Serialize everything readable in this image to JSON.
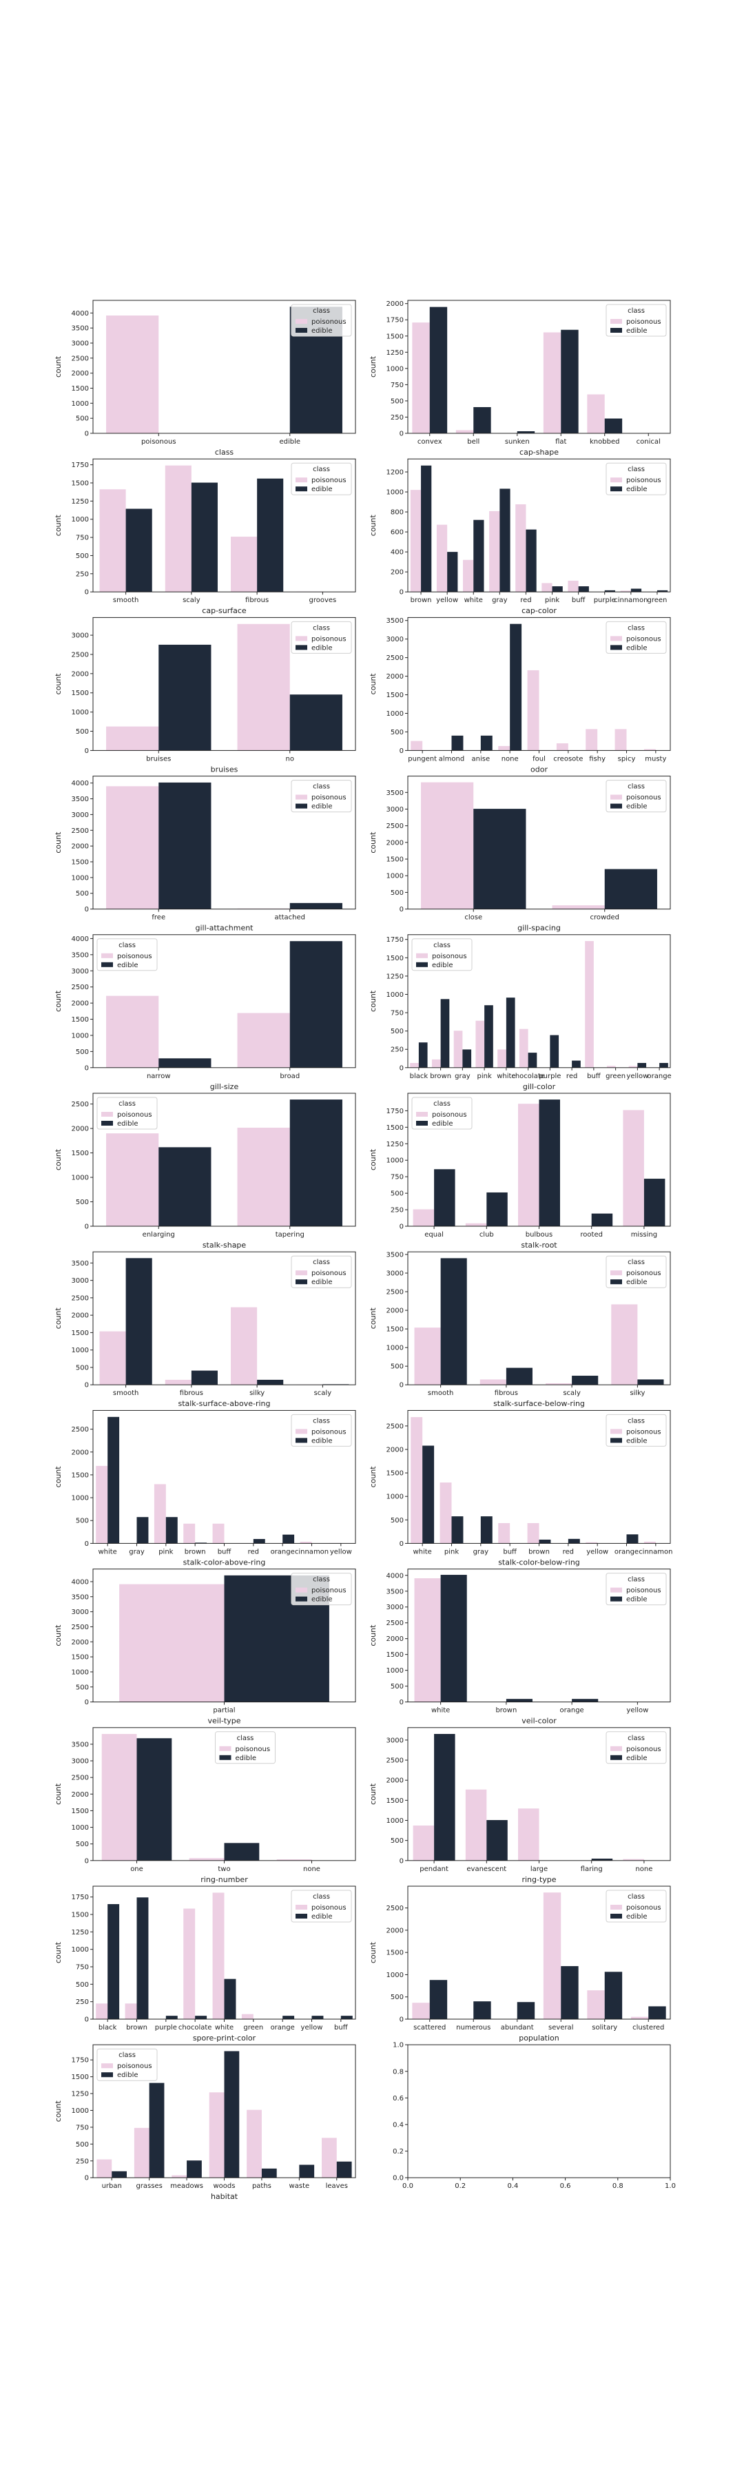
{
  "colors": {
    "poisonous": "#edcfe3",
    "edible": "#1f2a3a"
  },
  "legend": {
    "title": "class",
    "entries": [
      "poisonous",
      "edible"
    ]
  },
  "chart_data": [
    {
      "type": "bar",
      "xlabel": "class",
      "ylabel": "count",
      "categories": [
        "poisonous",
        "edible"
      ],
      "series": [
        {
          "name": "poisonous",
          "values": [
            3916,
            0
          ]
        },
        {
          "name": "edible",
          "values": [
            0,
            4208
          ]
        }
      ],
      "ylim": [
        0,
        4420
      ],
      "yticks": [
        0,
        500,
        1000,
        1500,
        2000,
        2500,
        3000,
        3500,
        4000
      ],
      "legend_placement": "top-right"
    },
    {
      "type": "bar",
      "xlabel": "cap-shape",
      "ylabel": "count",
      "categories": [
        "convex",
        "bell",
        "sunken",
        "flat",
        "knobbed",
        "conical"
      ],
      "series": [
        {
          "name": "poisonous",
          "values": [
            1708,
            48,
            0,
            1556,
            600,
            4
          ]
        },
        {
          "name": "edible",
          "values": [
            1948,
            404,
            32,
            1596,
            228,
            0
          ]
        }
      ],
      "ylim": [
        0,
        2050
      ],
      "yticks": [
        0,
        250,
        500,
        750,
        1000,
        1250,
        1500,
        1750,
        2000
      ],
      "legend_placement": "top-right"
    },
    {
      "type": "bar",
      "xlabel": "cap-surface",
      "ylabel": "count",
      "categories": [
        "smooth",
        "scaly",
        "fibrous",
        "grooves"
      ],
      "series": [
        {
          "name": "poisonous",
          "values": [
            1412,
            1740,
            760,
            4
          ]
        },
        {
          "name": "edible",
          "values": [
            1144,
            1504,
            1560,
            0
          ]
        }
      ],
      "ylim": [
        0,
        1830
      ],
      "yticks": [
        0,
        250,
        500,
        750,
        1000,
        1250,
        1500,
        1750
      ],
      "legend_placement": "top-right"
    },
    {
      "type": "bar",
      "xlabel": "cap-color",
      "ylabel": "count",
      "categories": [
        "brown",
        "yellow",
        "white",
        "gray",
        "red",
        "pink",
        "buff",
        "purple",
        "cinnamon",
        "green"
      ],
      "series": [
        {
          "name": "poisonous",
          "values": [
            1020,
            672,
            320,
            808,
            876,
            88,
            112,
            0,
            12,
            0
          ]
        },
        {
          "name": "edible",
          "values": [
            1264,
            400,
            720,
            1032,
            624,
            56,
            56,
            16,
            32,
            16
          ]
        }
      ],
      "ylim": [
        0,
        1330
      ],
      "yticks": [
        0,
        200,
        400,
        600,
        800,
        1000,
        1200
      ],
      "legend_placement": "top-right"
    },
    {
      "type": "bar",
      "xlabel": "bruises",
      "ylabel": "count",
      "categories": [
        "bruises",
        "no"
      ],
      "series": [
        {
          "name": "poisonous",
          "values": [
            624,
            3292
          ]
        },
        {
          "name": "edible",
          "values": [
            2752,
            1456
          ]
        }
      ],
      "ylim": [
        0,
        3460
      ],
      "yticks": [
        0,
        500,
        1000,
        1500,
        2000,
        2500,
        3000
      ],
      "legend_placement": "top-right"
    },
    {
      "type": "bar",
      "xlabel": "odor",
      "ylabel": "count",
      "categories": [
        "pungent",
        "almond",
        "anise",
        "none",
        "foul",
        "creosote",
        "fishy",
        "spicy",
        "musty"
      ],
      "series": [
        {
          "name": "poisonous",
          "values": [
            256,
            0,
            0,
            120,
            2160,
            192,
            576,
            576,
            36
          ]
        },
        {
          "name": "edible",
          "values": [
            0,
            400,
            400,
            3408,
            0,
            0,
            0,
            0,
            0
          ]
        }
      ],
      "ylim": [
        0,
        3580
      ],
      "yticks": [
        0,
        500,
        1000,
        1500,
        2000,
        2500,
        3000,
        3500
      ],
      "legend_placement": "top-right"
    },
    {
      "type": "bar",
      "xlabel": "gill-attachment",
      "ylabel": "count",
      "categories": [
        "free",
        "attached"
      ],
      "series": [
        {
          "name": "poisonous",
          "values": [
            3898,
            18
          ]
        },
        {
          "name": "edible",
          "values": [
            4016,
            192
          ]
        }
      ],
      "ylim": [
        0,
        4220
      ],
      "yticks": [
        0,
        500,
        1000,
        1500,
        2000,
        2500,
        3000,
        3500,
        4000
      ],
      "legend_placement": "top-right"
    },
    {
      "type": "bar",
      "xlabel": "gill-spacing",
      "ylabel": "count",
      "categories": [
        "close",
        "crowded"
      ],
      "series": [
        {
          "name": "poisonous",
          "values": [
            3804,
            112
          ]
        },
        {
          "name": "edible",
          "values": [
            3008,
            1200
          ]
        }
      ],
      "ylim": [
        0,
        3990
      ],
      "yticks": [
        0,
        500,
        1000,
        1500,
        2000,
        2500,
        3000,
        3500
      ],
      "legend_placement": "top-right"
    },
    {
      "type": "bar",
      "xlabel": "gill-size",
      "ylabel": "count",
      "categories": [
        "narrow",
        "broad"
      ],
      "series": [
        {
          "name": "poisonous",
          "values": [
            2224,
            1692
          ]
        },
        {
          "name": "edible",
          "values": [
            288,
            3920
          ]
        }
      ],
      "ylim": [
        0,
        4120
      ],
      "yticks": [
        0,
        500,
        1000,
        1500,
        2000,
        2500,
        3000,
        3500,
        4000
      ],
      "legend_placement": "top-left"
    },
    {
      "type": "bar",
      "xlabel": "gill-color",
      "ylabel": "count",
      "categories": [
        "black",
        "brown",
        "gray",
        "pink",
        "white",
        "chocolate",
        "purple",
        "red",
        "buff",
        "green",
        "yellow",
        "orange"
      ],
      "series": [
        {
          "name": "poisonous",
          "values": [
            64,
            112,
            504,
            640,
            248,
            528,
            0,
            0,
            1728,
            24,
            22,
            0
          ]
        },
        {
          "name": "edible",
          "values": [
            344,
            936,
            248,
            852,
            956,
            204,
            444,
            96,
            0,
            0,
            64,
            64
          ]
        }
      ],
      "ylim": [
        0,
        1815
      ],
      "yticks": [
        0,
        250,
        500,
        750,
        1000,
        1250,
        1500,
        1750
      ],
      "legend_placement": "top-left"
    },
    {
      "type": "bar",
      "xlabel": "stalk-shape",
      "ylabel": "count",
      "categories": [
        "enlarging",
        "tapering"
      ],
      "series": [
        {
          "name": "poisonous",
          "values": [
            1900,
            2016
          ]
        },
        {
          "name": "edible",
          "values": [
            1616,
            2592
          ]
        }
      ],
      "ylim": [
        0,
        2720
      ],
      "yticks": [
        0,
        500,
        1000,
        1500,
        2000,
        2500
      ],
      "legend_placement": "top-left"
    },
    {
      "type": "bar",
      "xlabel": "stalk-root",
      "ylabel": "count",
      "categories": [
        "equal",
        "club",
        "bulbous",
        "rooted",
        "missing"
      ],
      "series": [
        {
          "name": "poisonous",
          "values": [
            256,
            44,
            1856,
            0,
            1760
          ]
        },
        {
          "name": "edible",
          "values": [
            864,
            512,
            1920,
            192,
            720
          ]
        }
      ],
      "ylim": [
        0,
        2015
      ],
      "yticks": [
        0,
        250,
        500,
        750,
        1000,
        1250,
        1500,
        1750
      ],
      "legend_placement": "top-left"
    },
    {
      "type": "bar",
      "xlabel": "stalk-surface-above-ring",
      "ylabel": "count",
      "categories": [
        "smooth",
        "fibrous",
        "silky",
        "scaly"
      ],
      "series": [
        {
          "name": "poisonous",
          "values": [
            1536,
            144,
            2228,
            8
          ]
        },
        {
          "name": "edible",
          "values": [
            3640,
            408,
            144,
            16
          ]
        }
      ],
      "ylim": [
        0,
        3820
      ],
      "yticks": [
        0,
        500,
        1000,
        1500,
        2000,
        2500,
        3000,
        3500
      ],
      "legend_placement": "top-right"
    },
    {
      "type": "bar",
      "xlabel": "stalk-surface-below-ring",
      "ylabel": "count",
      "categories": [
        "smooth",
        "fibrous",
        "scaly",
        "silky"
      ],
      "series": [
        {
          "name": "poisonous",
          "values": [
            1536,
            144,
            40,
            2160
          ]
        },
        {
          "name": "edible",
          "values": [
            3400,
            456,
            244,
            144
          ]
        }
      ],
      "ylim": [
        0,
        3570
      ],
      "yticks": [
        0,
        500,
        1000,
        1500,
        2000,
        2500,
        3000,
        3500
      ],
      "legend_placement": "top-right"
    },
    {
      "type": "bar",
      "xlabel": "stalk-color-above-ring",
      "ylabel": "count",
      "categories": [
        "white",
        "gray",
        "pink",
        "brown",
        "buff",
        "red",
        "orange",
        "cinnamon",
        "yellow"
      ],
      "series": [
        {
          "name": "poisonous",
          "values": [
            1696,
            0,
            1296,
            432,
            432,
            0,
            0,
            36,
            8
          ]
        },
        {
          "name": "edible",
          "values": [
            2768,
            576,
            576,
            16,
            0,
            96,
            192,
            0,
            0
          ]
        }
      ],
      "ylim": [
        0,
        2910
      ],
      "yticks": [
        0,
        500,
        1000,
        1500,
        2000,
        2500
      ],
      "legend_placement": "top-right"
    },
    {
      "type": "bar",
      "xlabel": "stalk-color-below-ring",
      "ylabel": "count",
      "categories": [
        "white",
        "pink",
        "gray",
        "buff",
        "brown",
        "red",
        "yellow",
        "orange",
        "cinnamon"
      ],
      "series": [
        {
          "name": "poisonous",
          "values": [
            2688,
            1296,
            0,
            432,
            432,
            0,
            24,
            0,
            36
          ]
        },
        {
          "name": "edible",
          "values": [
            2080,
            576,
            576,
            0,
            80,
            96,
            0,
            192,
            0
          ]
        }
      ],
      "ylim": [
        0,
        2830
      ],
      "yticks": [
        0,
        500,
        1000,
        1500,
        2000,
        2500
      ],
      "legend_placement": "top-right"
    },
    {
      "type": "bar",
      "xlabel": "veil-type",
      "ylabel": "count",
      "categories": [
        "partial"
      ],
      "series": [
        {
          "name": "poisonous",
          "values": [
            3916
          ]
        },
        {
          "name": "edible",
          "values": [
            4208
          ]
        }
      ],
      "ylim": [
        0,
        4420
      ],
      "yticks": [
        0,
        500,
        1000,
        1500,
        2000,
        2500,
        3000,
        3500,
        4000
      ],
      "legend_placement": "top-right"
    },
    {
      "type": "bar",
      "xlabel": "veil-color",
      "ylabel": "count",
      "categories": [
        "white",
        "brown",
        "orange",
        "yellow"
      ],
      "series": [
        {
          "name": "poisonous",
          "values": [
            3908,
            0,
            0,
            8
          ]
        },
        {
          "name": "edible",
          "values": [
            4016,
            96,
            96,
            0
          ]
        }
      ],
      "ylim": [
        0,
        4200
      ],
      "yticks": [
        0,
        500,
        1000,
        1500,
        2000,
        2500,
        3000,
        3500,
        4000
      ],
      "legend_placement": "top-right"
    },
    {
      "type": "bar",
      "xlabel": "ring-number",
      "ylabel": "count",
      "categories": [
        "one",
        "two",
        "none"
      ],
      "series": [
        {
          "name": "poisonous",
          "values": [
            3808,
            72,
            36
          ]
        },
        {
          "name": "edible",
          "values": [
            3680,
            528,
            0
          ]
        }
      ],
      "ylim": [
        0,
        4000
      ],
      "yticks": [
        0,
        500,
        1000,
        1500,
        2000,
        2500,
        3000,
        3500
      ],
      "legend_placement": "top-center"
    },
    {
      "type": "bar",
      "xlabel": "ring-type",
      "ylabel": "count",
      "categories": [
        "pendant",
        "evanescent",
        "large",
        "flaring",
        "none"
      ],
      "series": [
        {
          "name": "poisonous",
          "values": [
            872,
            1768,
            1296,
            0,
            36
          ]
        },
        {
          "name": "edible",
          "values": [
            3152,
            1008,
            0,
            48,
            0
          ]
        }
      ],
      "ylim": [
        0,
        3310
      ],
      "yticks": [
        0,
        500,
        1000,
        1500,
        2000,
        2500,
        3000
      ],
      "legend_placement": "top-right"
    },
    {
      "type": "bar",
      "xlabel": "spore-print-color",
      "ylabel": "count",
      "categories": [
        "black",
        "brown",
        "purple",
        "chocolate",
        "white",
        "green",
        "orange",
        "yellow",
        "buff"
      ],
      "series": [
        {
          "name": "poisonous",
          "values": [
            224,
            224,
            0,
            1584,
            1812,
            72,
            0,
            0,
            0
          ]
        },
        {
          "name": "edible",
          "values": [
            1648,
            1744,
            48,
            48,
            576,
            0,
            48,
            48,
            48
          ]
        }
      ],
      "ylim": [
        0,
        1905
      ],
      "yticks": [
        0,
        250,
        500,
        750,
        1000,
        1250,
        1500,
        1750
      ],
      "legend_placement": "top-right"
    },
    {
      "type": "bar",
      "xlabel": "population",
      "ylabel": "count",
      "categories": [
        "scattered",
        "numerous",
        "abundant",
        "several",
        "solitary",
        "clustered"
      ],
      "series": [
        {
          "name": "poisonous",
          "values": [
            368,
            0,
            0,
            2848,
            648,
            52
          ]
        },
        {
          "name": "edible",
          "values": [
            880,
            400,
            384,
            1192,
            1064,
            288
          ]
        }
      ],
      "ylim": [
        0,
        2990
      ],
      "yticks": [
        0,
        500,
        1000,
        1500,
        2000,
        2500
      ],
      "legend_placement": "top-right"
    },
    {
      "type": "bar",
      "xlabel": "habitat",
      "ylabel": "count",
      "categories": [
        "urban",
        "grasses",
        "meadows",
        "woods",
        "paths",
        "waste",
        "leaves"
      ],
      "series": [
        {
          "name": "poisonous",
          "values": [
            272,
            740,
            36,
            1268,
            1008,
            0,
            592
          ]
        },
        {
          "name": "edible",
          "values": [
            96,
            1408,
            256,
            1880,
            136,
            192,
            240
          ]
        }
      ],
      "ylim": [
        0,
        1975
      ],
      "yticks": [
        0,
        250,
        500,
        750,
        1000,
        1250,
        1500,
        1750
      ],
      "legend_placement": "top-left"
    },
    {
      "type": "table",
      "empty": true,
      "xlim": [
        0,
        1
      ],
      "ylim": [
        0,
        1
      ],
      "xticks": [
        "0.0",
        "0.2",
        "0.4",
        "0.6",
        "0.8",
        "1.0"
      ],
      "yticks": [
        "0.0",
        "0.2",
        "0.4",
        "0.6",
        "0.8",
        "1.0"
      ]
    }
  ]
}
